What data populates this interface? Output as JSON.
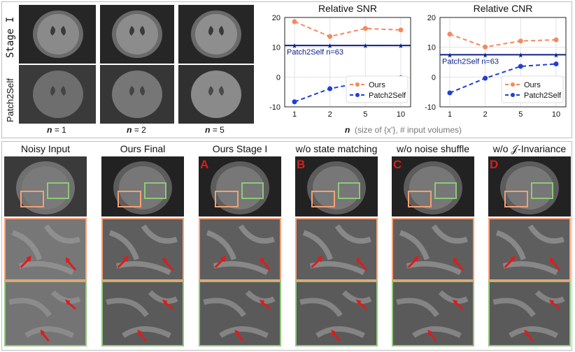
{
  "top": {
    "rows": [
      {
        "label": "Stage I"
      },
      {
        "label": "Patch2Self"
      }
    ],
    "columns": [
      {
        "n_label": "n",
        "value_label": "= 1"
      },
      {
        "n_label": "n",
        "value_label": "= 2"
      },
      {
        "n_label": "n",
        "value_label": "= 5"
      }
    ]
  },
  "chart_data": [
    {
      "type": "line",
      "title": "Relative SNR",
      "x": [
        "1",
        "2",
        "5",
        "10"
      ],
      "series": [
        {
          "name": "Ours",
          "values": [
            18.6,
            13.6,
            16.3,
            15.8
          ],
          "color": "#f4895f"
        },
        {
          "name": "Patch2Self",
          "values": [
            -8.3,
            -3.9,
            -1.6,
            -0.2
          ],
          "color": "#1f3fd6"
        }
      ],
      "reference_line": {
        "label": "Patch2Self n=63",
        "value": 10.6,
        "color": "#0b1f8a"
      },
      "ylim": [
        -10,
        20
      ],
      "yticks": [
        "-10",
        "0",
        "10",
        "20"
      ],
      "grid": true,
      "legend": "bottom-right"
    },
    {
      "type": "line",
      "title": "Relative CNR",
      "x": [
        "1",
        "2",
        "5",
        "10"
      ],
      "series": [
        {
          "name": "Ours",
          "values": [
            14.4,
            10.1,
            12.1,
            12.5
          ],
          "color": "#f4895f"
        },
        {
          "name": "Patch2Self",
          "values": [
            -5.3,
            -0.4,
            3.6,
            4.4
          ],
          "color": "#1f3fd6"
        }
      ],
      "reference_line": {
        "label": "Patch2Self n=63",
        "value": 7.5,
        "color": "#0b1f8a"
      },
      "ylim": [
        -10,
        20
      ],
      "yticks": [
        "-10",
        "0",
        "10",
        "20"
      ],
      "grid": true,
      "legend": "bottom-right"
    }
  ],
  "x_axis_note": {
    "n": "n",
    "rest": "(size of {x'},  # input volumes)"
  },
  "bottom": {
    "columns": [
      {
        "title": "Noisy Input",
        "letter": ""
      },
      {
        "title": "Ours Final",
        "letter": ""
      },
      {
        "title": "Ours Stage I",
        "letter": "A"
      },
      {
        "title": "w/o state matching",
        "letter": "B"
      },
      {
        "title": "w/o noise shuffle",
        "letter": "C"
      },
      {
        "title": "w/o 𝒥-Invariance",
        "letter": "D"
      }
    ],
    "box_colors": {
      "orange": "#f4a074",
      "green": "#8ec97a",
      "arrow": "#e01b1b"
    }
  }
}
